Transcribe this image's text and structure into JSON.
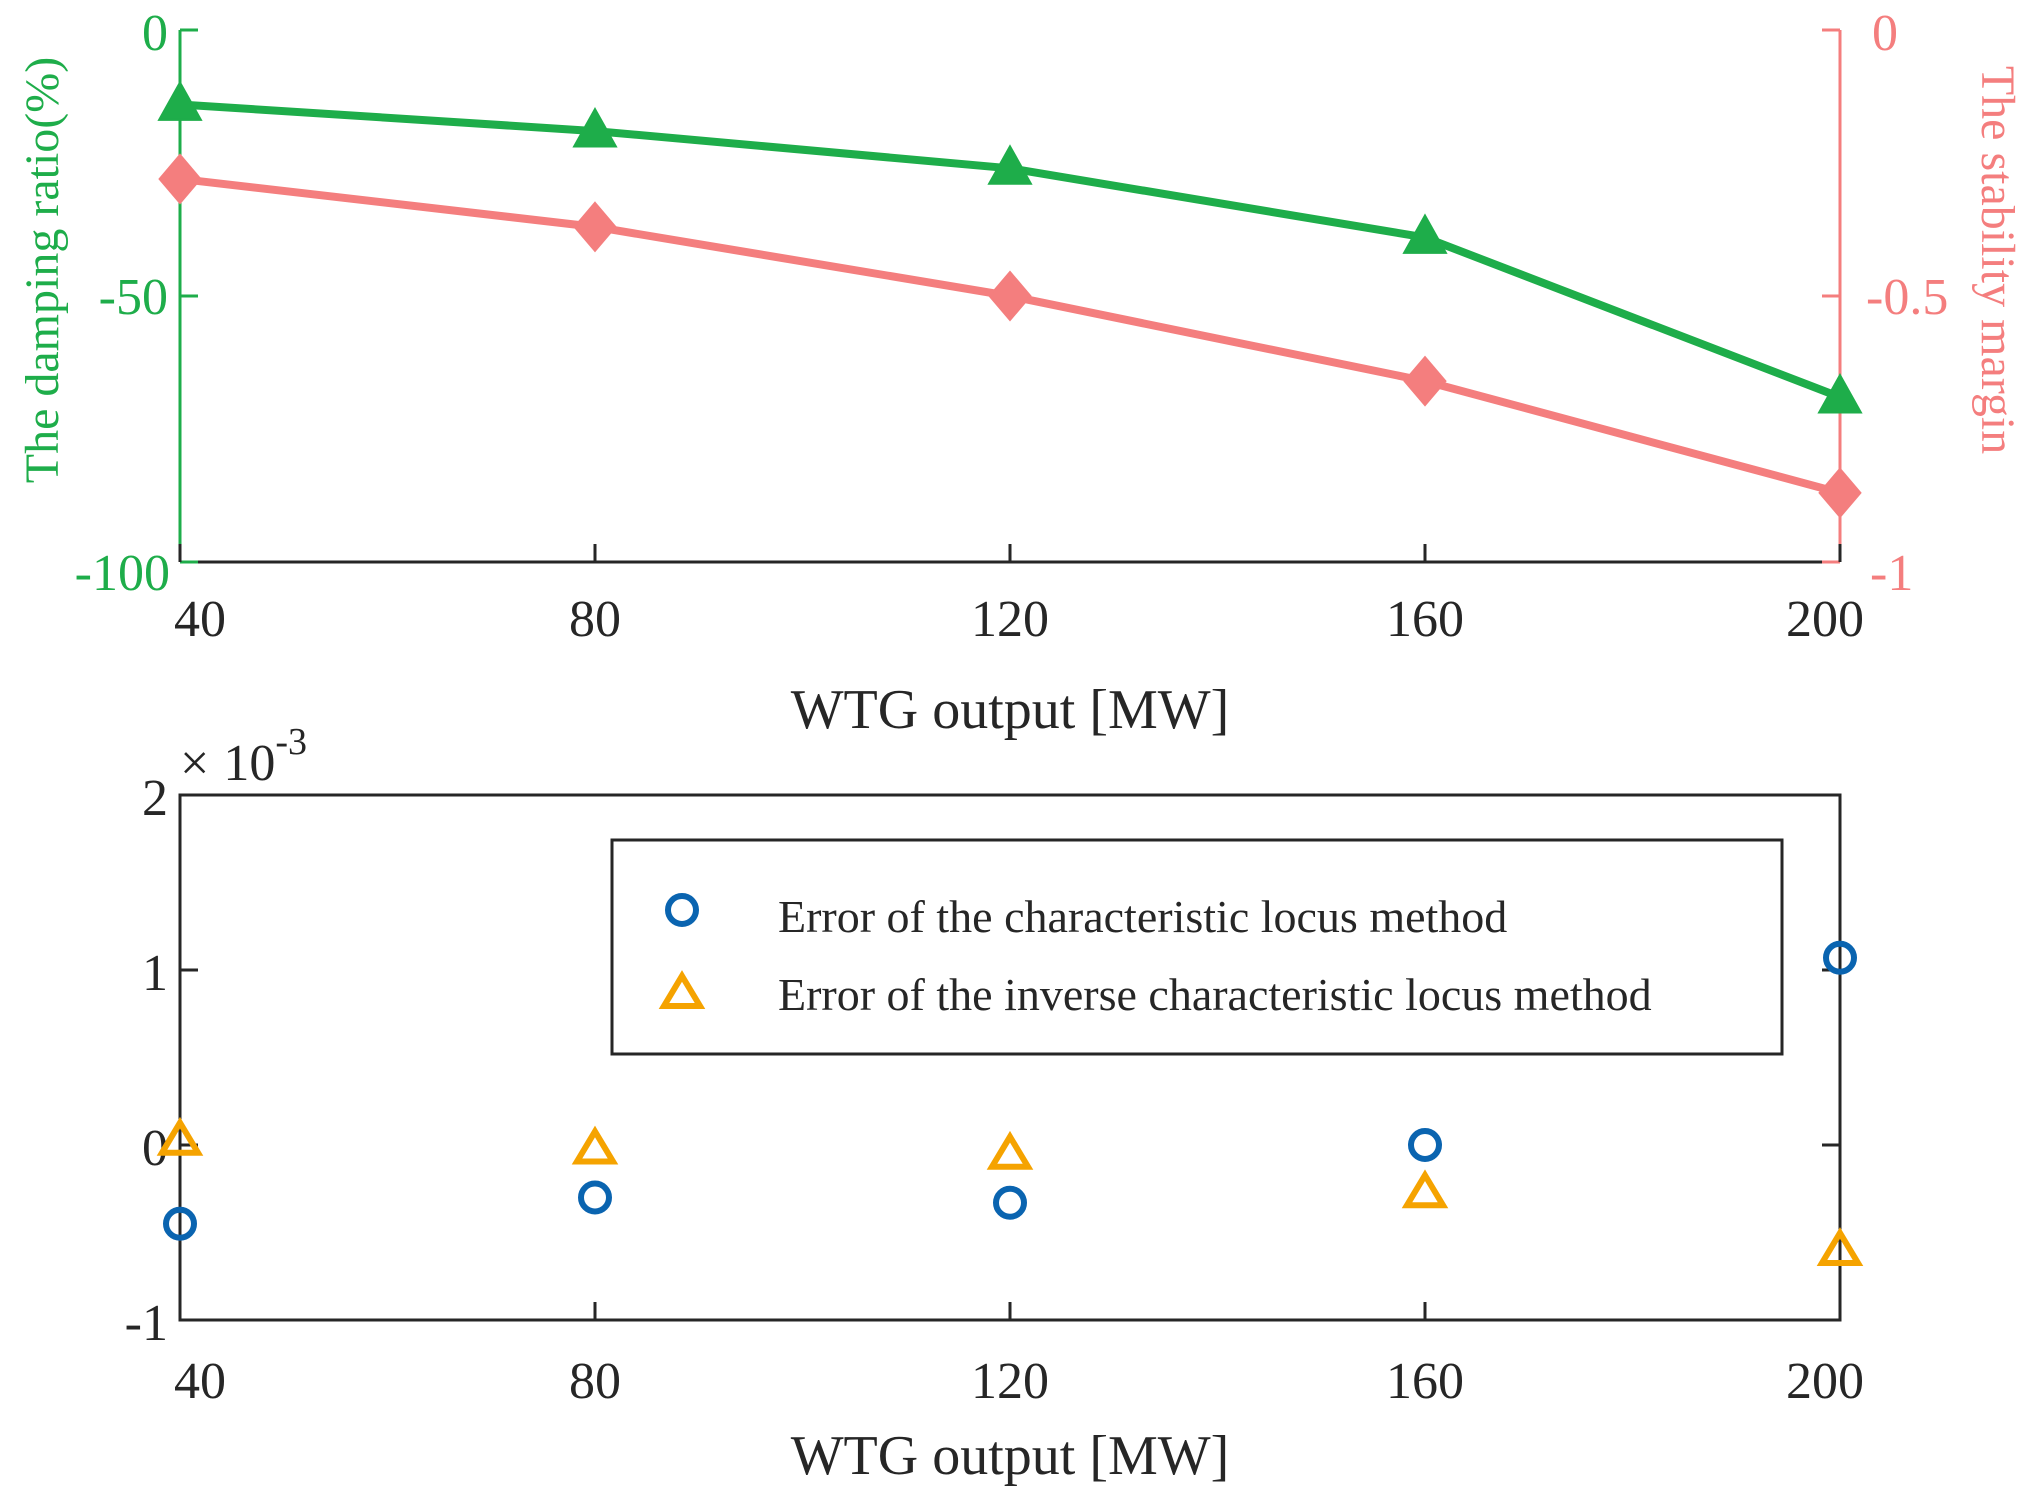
{
  "chart_data": [
    {
      "type": "line",
      "title": "",
      "xlabel": "WTG output [MW]",
      "ylabel_left": "The damping ratio(%)",
      "ylabel_right": "The stability margin",
      "x": [
        40,
        80,
        120,
        160,
        200
      ],
      "x_ticks": [
        "40",
        "80",
        "120",
        "160",
        "200"
      ],
      "xlim": [
        40,
        200
      ],
      "ylim_left": [
        -100,
        0
      ],
      "ylim_right": [
        -1,
        0
      ],
      "y_ticks_left": [
        "0",
        "-50",
        "-100"
      ],
      "y_ticks_right": [
        "0",
        "-0.5",
        "-1"
      ],
      "series": [
        {
          "name": "Damping ratio",
          "axis": "left",
          "marker": "triangle",
          "color": "#1ead4a",
          "values": [
            -14,
            -19,
            -26,
            -39,
            -69
          ]
        },
        {
          "name": "Stability margin",
          "axis": "right",
          "marker": "diamond",
          "color": "#f47e7e",
          "values": [
            -0.28,
            -0.37,
            -0.5,
            -0.66,
            -0.87
          ]
        }
      ],
      "left_axis_color": "#1ead4a",
      "right_axis_color": "#f47e7e",
      "grid": false
    },
    {
      "type": "scatter",
      "title": "",
      "xlabel": "WTG output [MW]",
      "ylabel": "",
      "exponent_prefix": "×",
      "exponent_base": "10",
      "exponent_power": "-3",
      "x_ticks": [
        "40",
        "80",
        "120",
        "160",
        "200"
      ],
      "xlim": [
        40,
        200
      ],
      "ylim": [
        -1,
        2
      ],
      "y_ticks": [
        "2",
        "1",
        "0",
        "-1"
      ],
      "series": [
        {
          "name": "Error of the characteristic locus method",
          "marker": "circle",
          "color": "#0a64b0",
          "x": [
            40,
            80,
            120,
            160,
            200
          ],
          "values": [
            -0.45,
            -0.3,
            -0.33,
            0.0,
            1.07
          ]
        },
        {
          "name": "Error of the inverse characteristic locus method",
          "marker": "triangle",
          "color": "#f5a300",
          "x": [
            40,
            80,
            120,
            160,
            200
          ],
          "values": [
            0.03,
            -0.02,
            -0.05,
            -0.27,
            -0.6
          ]
        }
      ],
      "legend_position": "top-right",
      "grid": false
    }
  ]
}
